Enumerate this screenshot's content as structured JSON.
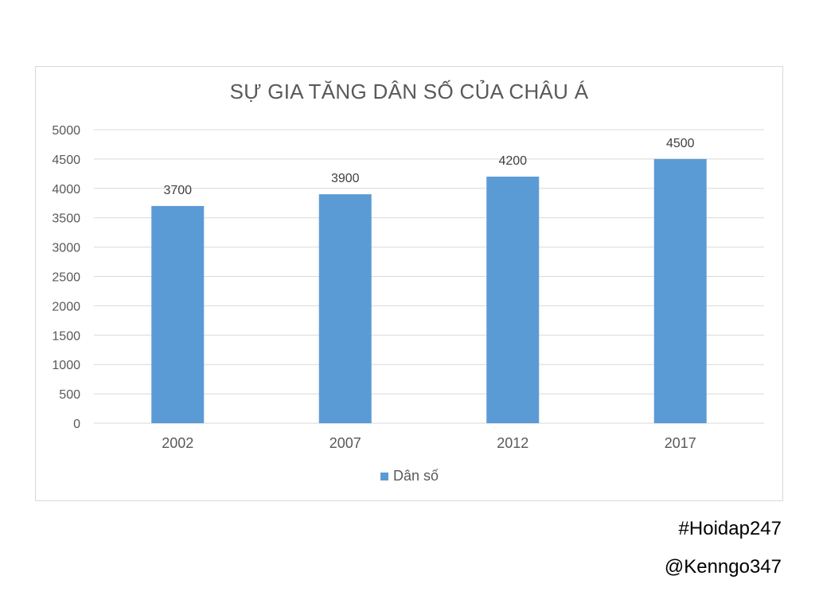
{
  "chart_data": {
    "type": "bar",
    "title": "SỰ GIA TĂNG DÂN SỐ CỦA CHÂU Á",
    "categories": [
      "2002",
      "2007",
      "2012",
      "2017"
    ],
    "series": [
      {
        "name": "Dân số",
        "values": [
          3700,
          3900,
          4200,
          4500
        ],
        "color": "#5b9bd5"
      }
    ],
    "data_labels": [
      "3700",
      "3900",
      "4200",
      "4500"
    ],
    "y_ticks": [
      "0",
      "500",
      "1000",
      "1500",
      "2000",
      "2500",
      "3000",
      "3500",
      "4000",
      "4500",
      "5000"
    ],
    "ylim": [
      0,
      5000
    ],
    "grid": true,
    "legend_position": "bottom",
    "xlabel": "",
    "ylabel": ""
  },
  "watermarks": {
    "hashtag": "#Hoidap247",
    "author": "@Kenngo347"
  },
  "colors": {
    "bar": "#5b9bd5",
    "grid": "#d9d9d9",
    "text": "#595959"
  }
}
